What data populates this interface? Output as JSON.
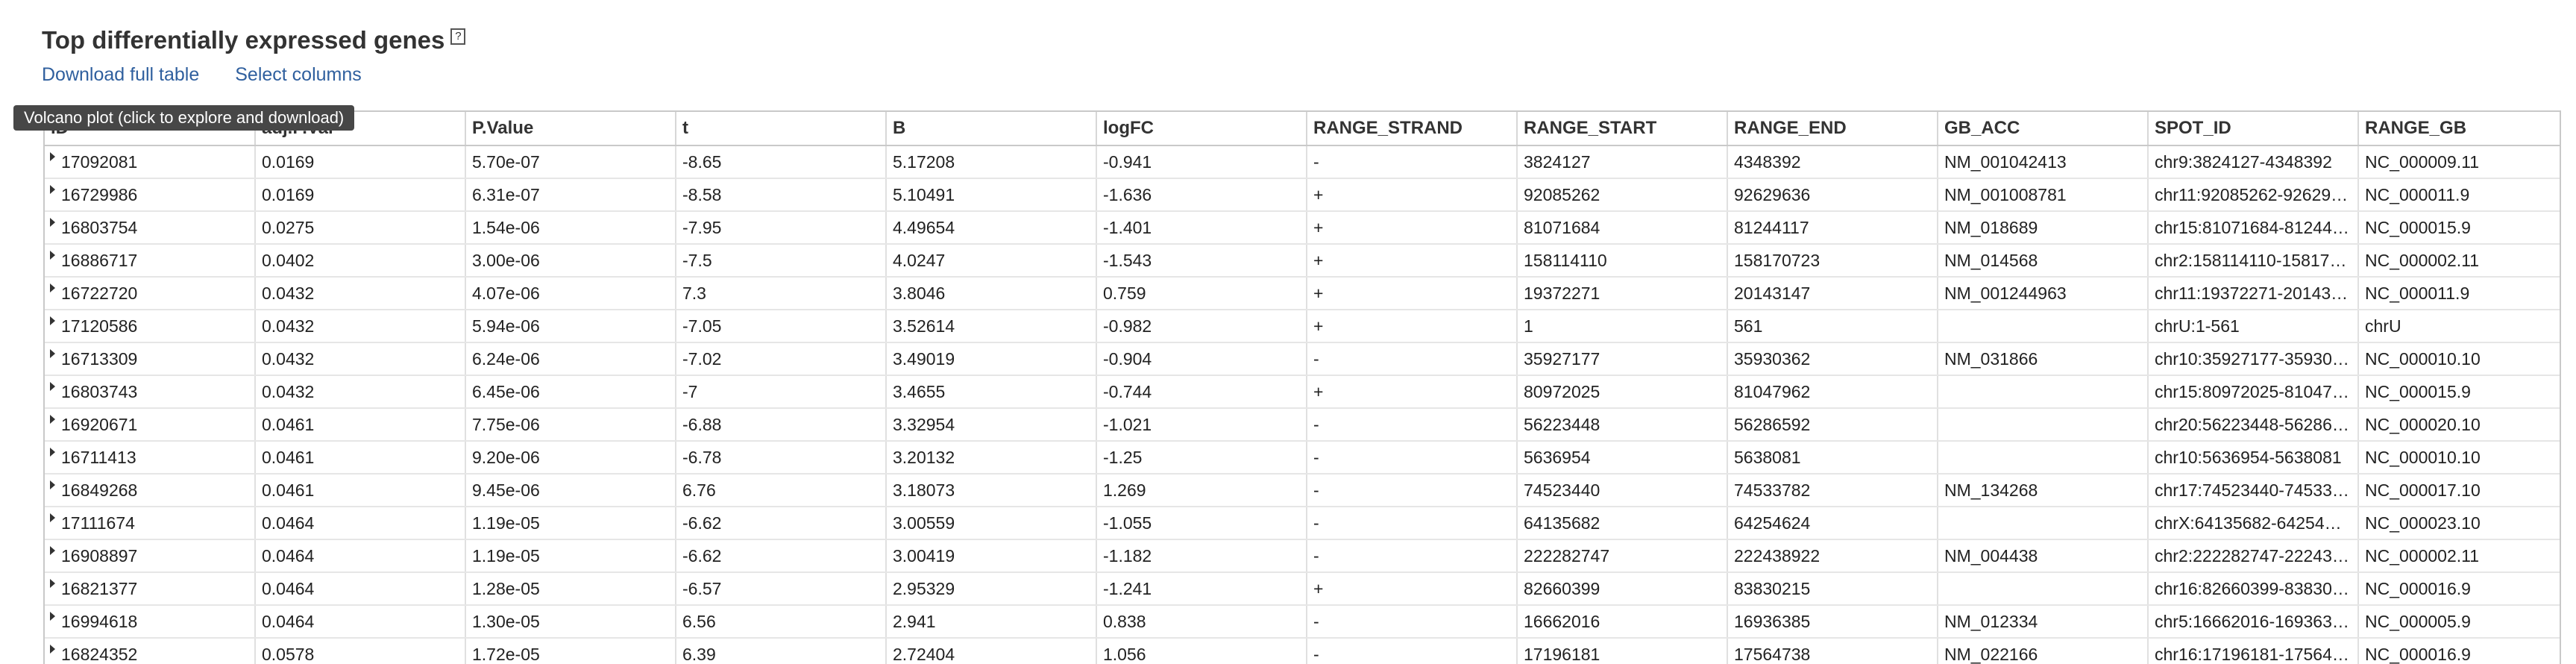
{
  "header": {
    "title": "Top differentially expressed genes",
    "help_glyph": "?"
  },
  "links": {
    "download": "Download full table",
    "select_columns": "Select columns"
  },
  "tooltip": {
    "text": "Volcano plot (click to explore and download)"
  },
  "table": {
    "columns": [
      "ID",
      "adj.P.Val",
      "P.Value",
      "t",
      "B",
      "logFC",
      "RANGE_STRAND",
      "RANGE_START",
      "RANGE_END",
      "GB_ACC",
      "SPOT_ID",
      "RANGE_GB"
    ],
    "rows": [
      [
        "17092081",
        "0.0169",
        "5.70e-07",
        "-8.65",
        "5.17208",
        "-0.941",
        "-",
        "3824127",
        "4348392",
        "NM_001042413",
        "chr9:3824127-4348392",
        "NC_000009.11"
      ],
      [
        "16729986",
        "0.0169",
        "6.31e-07",
        "-8.58",
        "5.10491",
        "-1.636",
        "+",
        "92085262",
        "92629636",
        "NM_001008781",
        "chr11:92085262-92629…",
        "NC_000011.9"
      ],
      [
        "16803754",
        "0.0275",
        "1.54e-06",
        "-7.95",
        "4.49654",
        "-1.401",
        "+",
        "81071684",
        "81244117",
        "NM_018689",
        "chr15:81071684-81244…",
        "NC_000015.9"
      ],
      [
        "16886717",
        "0.0402",
        "3.00e-06",
        "-7.5",
        "4.0247",
        "-1.543",
        "+",
        "158114110",
        "158170723",
        "NM_014568",
        "chr2:158114110-15817…",
        "NC_000002.11"
      ],
      [
        "16722720",
        "0.0432",
        "4.07e-06",
        "7.3",
        "3.8046",
        "0.759",
        "+",
        "19372271",
        "20143147",
        "NM_001244963",
        "chr11:19372271-20143…",
        "NC_000011.9"
      ],
      [
        "17120586",
        "0.0432",
        "5.94e-06",
        "-7.05",
        "3.52614",
        "-0.982",
        "+",
        "1",
        "561",
        "",
        "chrU:1-561",
        "chrU"
      ],
      [
        "16713309",
        "0.0432",
        "6.24e-06",
        "-7.02",
        "3.49019",
        "-0.904",
        "-",
        "35927177",
        "35930362",
        "NM_031866",
        "chr10:35927177-35930…",
        "NC_000010.10"
      ],
      [
        "16803743",
        "0.0432",
        "6.45e-06",
        "-7",
        "3.4655",
        "-0.744",
        "+",
        "80972025",
        "81047962",
        "",
        "chr15:80972025-81047…",
        "NC_000015.9"
      ],
      [
        "16920671",
        "0.0461",
        "7.75e-06",
        "-6.88",
        "3.32954",
        "-1.021",
        "-",
        "56223448",
        "56286592",
        "",
        "chr20:56223448-56286…",
        "NC_000020.10"
      ],
      [
        "16711413",
        "0.0461",
        "9.20e-06",
        "-6.78",
        "3.20132",
        "-1.25",
        "-",
        "5636954",
        "5638081",
        "",
        "chr10:5636954-5638081",
        "NC_000010.10"
      ],
      [
        "16849268",
        "0.0461",
        "9.45e-06",
        "6.76",
        "3.18073",
        "1.269",
        "-",
        "74523440",
        "74533782",
        "NM_134268",
        "chr17:74523440-74533…",
        "NC_000017.10"
      ],
      [
        "17111674",
        "0.0464",
        "1.19e-05",
        "-6.62",
        "3.00559",
        "-1.055",
        "-",
        "64135682",
        "64254624",
        "",
        "chrX:64135682-64254…",
        "NC_000023.10"
      ],
      [
        "16908897",
        "0.0464",
        "1.19e-05",
        "-6.62",
        "3.00419",
        "-1.182",
        "-",
        "222282747",
        "222438922",
        "NM_004438",
        "chr2:222282747-22243…",
        "NC_000002.11"
      ],
      [
        "16821377",
        "0.0464",
        "1.28e-05",
        "-6.57",
        "2.95329",
        "-1.241",
        "+",
        "82660399",
        "83830215",
        "",
        "chr16:82660399-83830…",
        "NC_000016.9"
      ],
      [
        "16994618",
        "0.0464",
        "1.30e-05",
        "6.56",
        "2.941",
        "0.838",
        "-",
        "16662016",
        "16936385",
        "NM_012334",
        "chr5:16662016-169363…",
        "NC_000005.9"
      ],
      [
        "16824352",
        "0.0578",
        "1.72e-05",
        "6.39",
        "2.72404",
        "1.056",
        "-",
        "17196181",
        "17564738",
        "NM_022166",
        "chr16:17196181-17564…",
        "NC_000016.9"
      ]
    ]
  }
}
